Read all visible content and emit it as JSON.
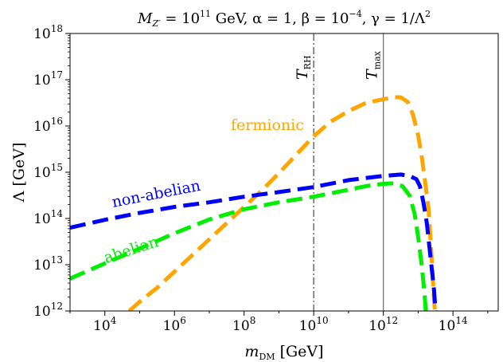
{
  "chart_data": {
    "type": "line",
    "title": "M_{Z'} = 10^{11} GeV, α = 1, β = 10^{-4}, γ = 1/Λ^2",
    "title_parts": {
      "prefix": "M",
      "prefix_sub": "Z′",
      "eq_mass": " = 10",
      "mass_exp": "11",
      "mid": " GeV, α = 1, β = 10",
      "beta_exp": "−4",
      "tail": ", γ = 1/Λ",
      "gamma_exp": "2"
    },
    "xlabel": "m_DM [GeV]",
    "xlabel_parts": {
      "main": "m",
      "sub": "DM",
      "unit": " [GeV]"
    },
    "ylabel": "Λ [GeV]",
    "xscale": "log",
    "yscale": "log",
    "xlim_log10": [
      3,
      15.3
    ],
    "ylim_log10": [
      12,
      18
    ],
    "x_ticks": [
      {
        "base": "10",
        "exp": "4",
        "log10": 4
      },
      {
        "base": "10",
        "exp": "6",
        "log10": 6
      },
      {
        "base": "10",
        "exp": "8",
        "log10": 8
      },
      {
        "base": "10",
        "exp": "10",
        "log10": 10
      },
      {
        "base": "10",
        "exp": "12",
        "log10": 12
      },
      {
        "base": "10",
        "exp": "14",
        "log10": 14
      }
    ],
    "y_ticks": [
      {
        "base": "10",
        "exp": "12",
        "log10": 12
      },
      {
        "base": "10",
        "exp": "13",
        "log10": 13
      },
      {
        "base": "10",
        "exp": "14",
        "log10": 14
      },
      {
        "base": "10",
        "exp": "15",
        "log10": 15
      },
      {
        "base": "10",
        "exp": "16",
        "log10": 16
      },
      {
        "base": "10",
        "exp": "17",
        "log10": 17
      },
      {
        "base": "10",
        "exp": "18",
        "log10": 18
      }
    ],
    "grid": false,
    "series": [
      {
        "name": "fermionic",
        "color": "#ffa500",
        "style": "dashed",
        "points_log10": [
          [
            4.7,
            12
          ],
          [
            5,
            12.2
          ],
          [
            5.5,
            12.5
          ],
          [
            6,
            12.85
          ],
          [
            6.5,
            13.2
          ],
          [
            7,
            13.55
          ],
          [
            7.5,
            13.9
          ],
          [
            8,
            14.25
          ],
          [
            8.5,
            14.6
          ],
          [
            9,
            14.98
          ],
          [
            9.5,
            15.38
          ],
          [
            10,
            15.78
          ],
          [
            10.5,
            16.1
          ],
          [
            11,
            16.32
          ],
          [
            11.5,
            16.5
          ],
          [
            12,
            16.58
          ],
          [
            12.3,
            16.62
          ],
          [
            12.5,
            16.62
          ],
          [
            12.7,
            16.52
          ],
          [
            12.85,
            16.25
          ],
          [
            13,
            15.8
          ],
          [
            13.1,
            15.35
          ],
          [
            13.2,
            14.8
          ],
          [
            13.3,
            14.2
          ],
          [
            13.35,
            13.6
          ],
          [
            13.4,
            13
          ],
          [
            13.45,
            12.3
          ],
          [
            13.48,
            12
          ]
        ]
      },
      {
        "name": "non-abelian",
        "color": "#0000ff",
        "style": "dashed",
        "points_log10": [
          [
            3,
            13.8
          ],
          [
            4,
            13.97
          ],
          [
            5,
            14.12
          ],
          [
            6,
            14.25
          ],
          [
            7,
            14.35
          ],
          [
            8,
            14.47
          ],
          [
            9,
            14.57
          ],
          [
            10,
            14.68
          ],
          [
            11,
            14.83
          ],
          [
            12,
            14.92
          ],
          [
            12.5,
            14.95
          ],
          [
            12.75,
            14.92
          ],
          [
            12.95,
            14.85
          ],
          [
            13.05,
            14.7
          ],
          [
            13.15,
            14.35
          ],
          [
            13.25,
            13.9
          ],
          [
            13.35,
            13.2
          ],
          [
            13.45,
            12.5
          ],
          [
            13.5,
            12
          ]
        ]
      },
      {
        "name": "abelian",
        "color": "#00ee00",
        "style": "dashed",
        "points_log10": [
          [
            3,
            12.7
          ],
          [
            4,
            13.03
          ],
          [
            5,
            13.35
          ],
          [
            6,
            13.68
          ],
          [
            7,
            13.98
          ],
          [
            8,
            14.2
          ],
          [
            9,
            14.35
          ],
          [
            10,
            14.47
          ],
          [
            11,
            14.62
          ],
          [
            11.5,
            14.7
          ],
          [
            12,
            14.75
          ],
          [
            12.3,
            14.76
          ],
          [
            12.55,
            14.7
          ],
          [
            12.75,
            14.5
          ],
          [
            12.9,
            14.1
          ],
          [
            13,
            13.6
          ],
          [
            13.1,
            13.0
          ],
          [
            13.18,
            12.4
          ],
          [
            13.22,
            12
          ]
        ]
      }
    ],
    "series_labels": [
      {
        "text": "fermionic",
        "color": "#ffa500"
      },
      {
        "text": "non-abelian",
        "color": "#0000ff"
      },
      {
        "text": "abelian",
        "color": "#00ee00"
      }
    ],
    "vlines": [
      {
        "label_main": "T",
        "label_sub": "RH",
        "x_log10": 10,
        "style": "dashdot",
        "color": "#555555"
      },
      {
        "label_main": "T",
        "label_sub": "max",
        "x_log10": 12,
        "style": "solid",
        "color": "#777777"
      }
    ]
  }
}
